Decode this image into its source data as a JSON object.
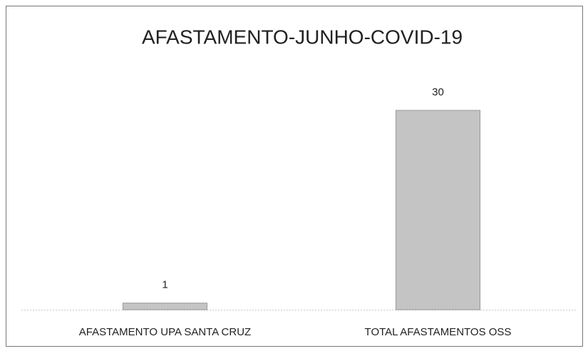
{
  "chart_data": {
    "type": "bar",
    "title": "AFASTAMENTO-JUNHO-COVID-19",
    "categories": [
      "AFASTAMENTO UPA SANTA CRUZ",
      "TOTAL AFASTAMENTOS OSS"
    ],
    "values": [
      1,
      30
    ],
    "color": "#c4c4c4"
  }
}
